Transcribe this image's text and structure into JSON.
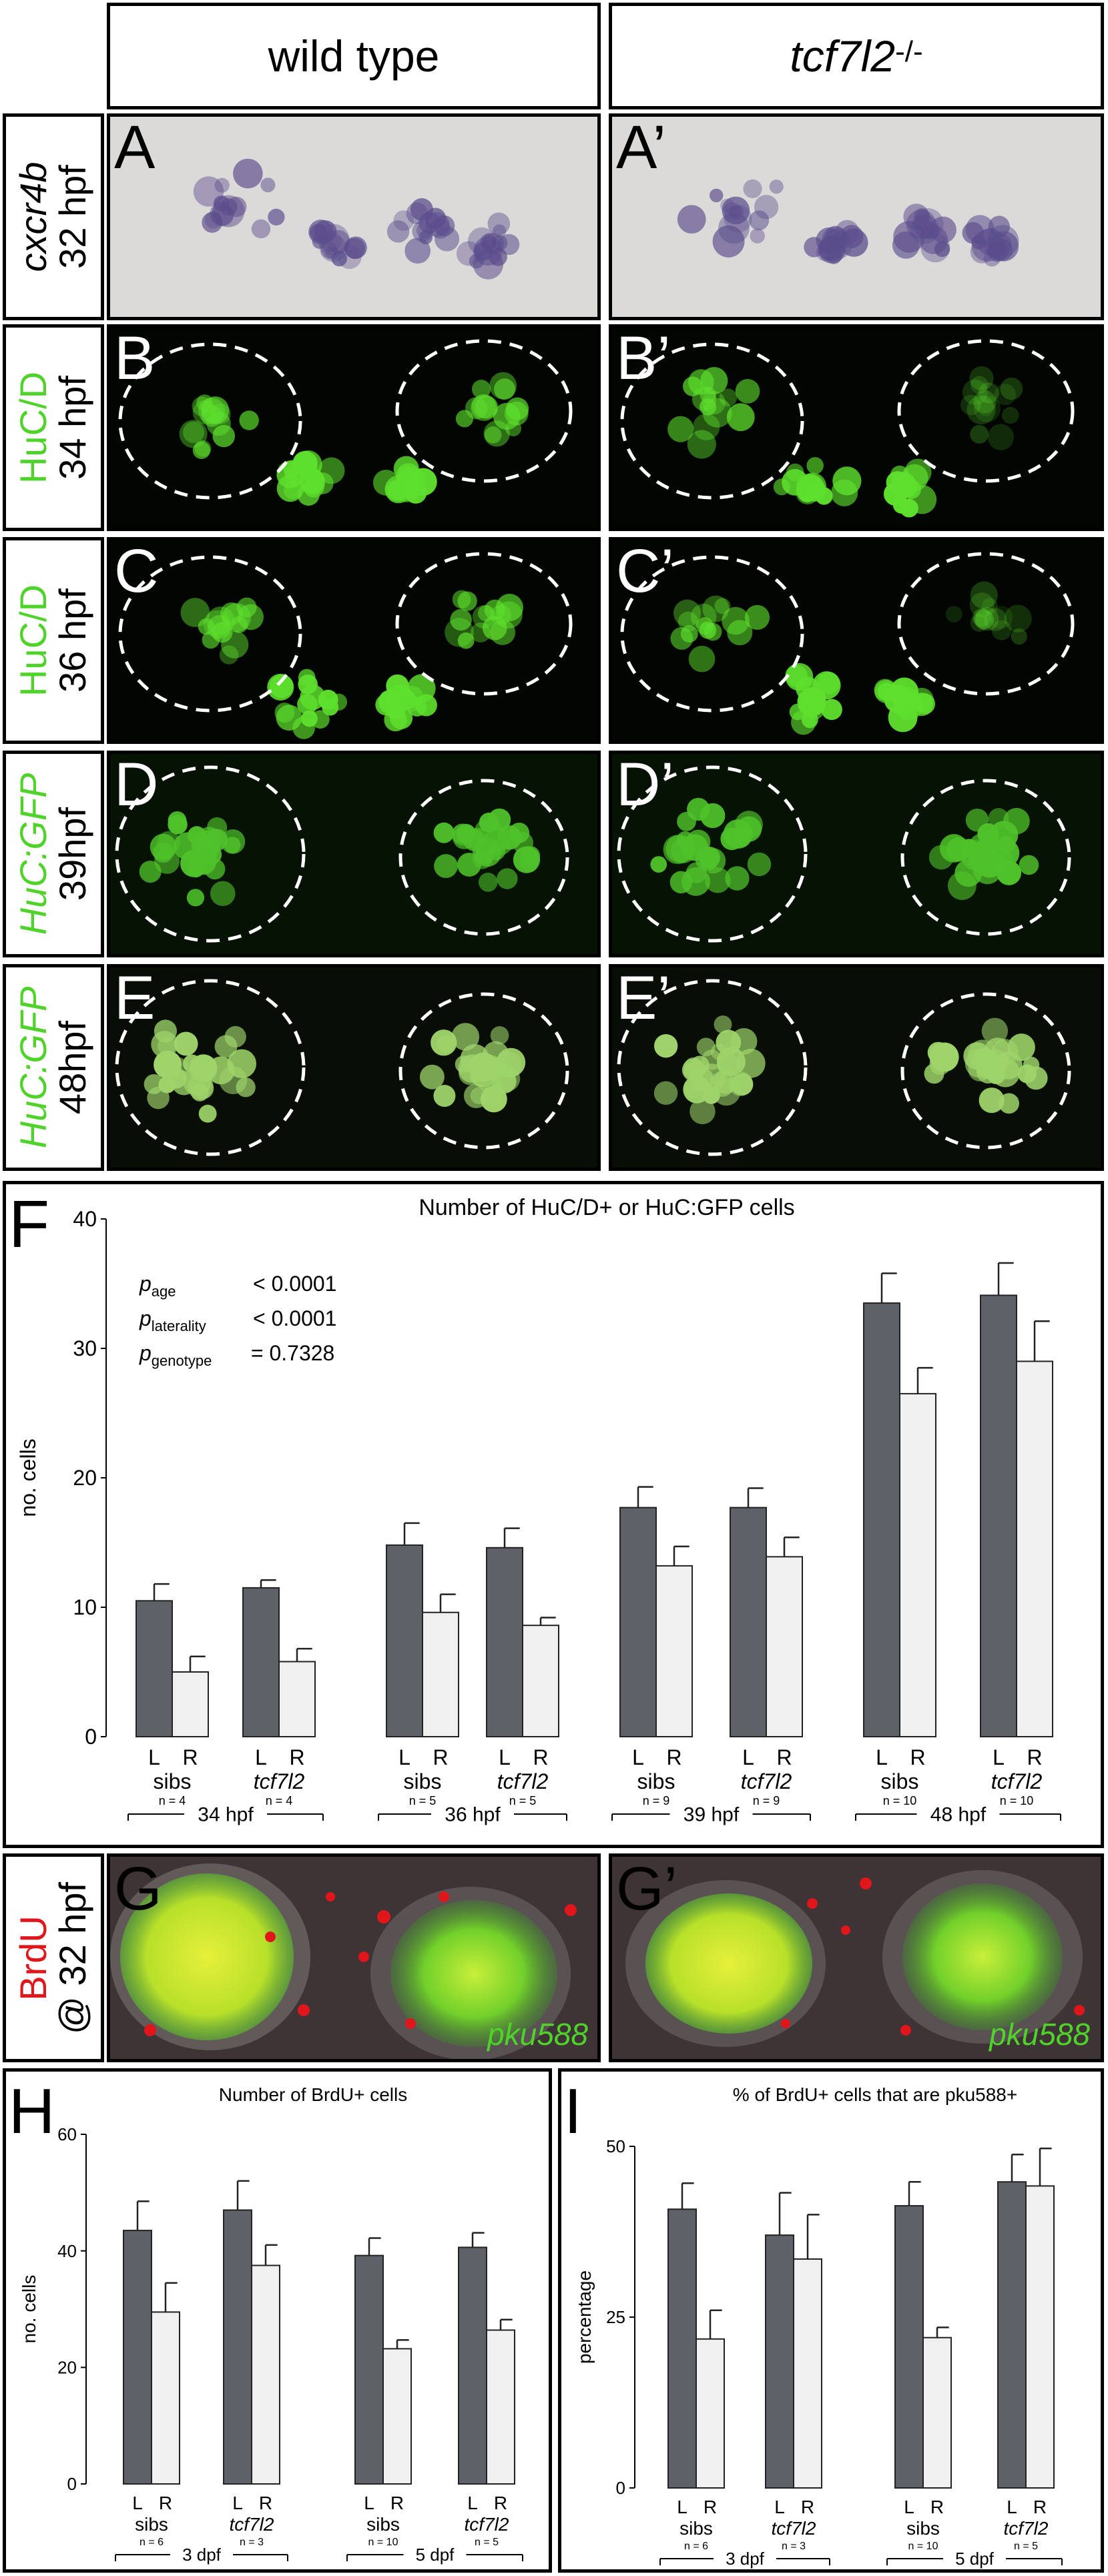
{
  "headers": {
    "wild_type": "wild type",
    "mutant_gene": "tcf7l2",
    "mutant_sup": " -/-"
  },
  "rows": [
    {
      "id": "A",
      "marker": "cxcr4b",
      "stage": "32 hpf",
      "left": "A",
      "right": "A’",
      "color": "#000000"
    },
    {
      "id": "B",
      "marker": "HuC/D",
      "stage": "34 hpf",
      "left": "B",
      "right": "B’",
      "color": "#4fd32a"
    },
    {
      "id": "C",
      "marker": "HuC/D",
      "stage": "36 hpf",
      "left": "C",
      "right": "C’",
      "color": "#4fd32a"
    },
    {
      "id": "D",
      "marker": "HuC:GFP",
      "stage": "39hpf",
      "left": "D",
      "right": "D’",
      "color": "#4fd32a"
    },
    {
      "id": "E",
      "marker": "HuC:GFP",
      "stage": "48hpf",
      "left": "E",
      "right": "E’",
      "color": "#4fd32a"
    }
  ],
  "panel_g": {
    "label_brdu": "BrdU",
    "label_stage": "@ 32 hpf",
    "left": "G",
    "right": "G’",
    "pku": "pku588"
  },
  "chart_f": {
    "letter": "F",
    "stats": {
      "age_sym": "p",
      "age_sub": "age",
      "age_val": "< 0.0001",
      "lat_sym": "p",
      "lat_sub": "laterality",
      "lat_val": "< 0.0001",
      "gen_sym": "p",
      "gen_sub": "genotype",
      "gen_val": "= 0.7328"
    }
  },
  "chart_h": {
    "letter": "H"
  },
  "chart_i": {
    "letter": "I"
  },
  "colors": {
    "dark_bar": "#5f6168",
    "light_bar": "#f0f0f0",
    "green": "#4fd32a",
    "red": "#e0161b"
  },
  "chart_data": [
    {
      "type": "bar",
      "title": "Number of HuC/D+ or HuC:GFP cells",
      "ylabel": "no. cells",
      "ylim": [
        0,
        40
      ],
      "yticks": [
        0,
        10,
        20,
        30,
        40
      ],
      "series_names": [
        "L",
        "R"
      ],
      "groups": [
        {
          "label": "sibs",
          "n": "n = 4",
          "stage": "34 hpf",
          "L": 10.5,
          "L_err": 1.3,
          "R": 5.0,
          "R_err": 1.2
        },
        {
          "label": "tcf7l2",
          "n": "n = 4",
          "stage": "34 hpf",
          "L": 11.5,
          "L_err": 0.6,
          "R": 5.8,
          "R_err": 1.0
        },
        {
          "label": "sibs",
          "n": "n = 5",
          "stage": "36 hpf",
          "L": 14.8,
          "L_err": 1.7,
          "R": 9.6,
          "R_err": 1.4
        },
        {
          "label": "tcf7l2",
          "n": "n = 5",
          "stage": "36 hpf",
          "L": 14.6,
          "L_err": 1.5,
          "R": 8.6,
          "R_err": 0.6
        },
        {
          "label": "sibs",
          "n": "n = 9",
          "stage": "39 hpf",
          "L": 17.7,
          "L_err": 1.6,
          "R": 13.2,
          "R_err": 1.5
        },
        {
          "label": "tcf7l2",
          "n": "n = 9",
          "stage": "39 hpf",
          "L": 17.7,
          "L_err": 1.5,
          "R": 13.9,
          "R_err": 1.5
        },
        {
          "label": "sibs",
          "n": "n = 10",
          "stage": "48 hpf",
          "L": 33.5,
          "L_err": 2.3,
          "R": 26.5,
          "R_err": 2.0
        },
        {
          "label": "tcf7l2",
          "n": "n = 10",
          "stage": "48 hpf",
          "L": 34.1,
          "L_err": 2.5,
          "R": 29.0,
          "R_err": 3.1
        }
      ],
      "stages": [
        "34 hpf",
        "36 hpf",
        "39 hpf",
        "48 hpf"
      ]
    },
    {
      "type": "bar",
      "title": "Number of BrdU+ cells",
      "ylabel": "no. cells",
      "ylim": [
        0,
        60
      ],
      "yticks": [
        0,
        20,
        40,
        60
      ],
      "series_names": [
        "L",
        "R"
      ],
      "groups": [
        {
          "label": "sibs",
          "n": "n = 6",
          "stage": "3 dpf",
          "L": 43.5,
          "L_err": 5.0,
          "R": 29.5,
          "R_err": 5.0
        },
        {
          "label": "tcf7l2",
          "n": "n = 3",
          "stage": "3 dpf",
          "L": 47.0,
          "L_err": 5.0,
          "R": 37.5,
          "R_err": 3.5
        },
        {
          "label": "sibs",
          "n": "n = 10",
          "stage": "5 dpf",
          "L": 39.2,
          "L_err": 3.0,
          "R": 23.2,
          "R_err": 1.5
        },
        {
          "label": "tcf7l2",
          "n": "n = 5",
          "stage": "5 dpf",
          "L": 40.6,
          "L_err": 2.5,
          "R": 26.4,
          "R_err": 1.8
        }
      ],
      "stages": [
        "3 dpf",
        "5 dpf"
      ]
    },
    {
      "type": "bar",
      "title": "% of BrdU+ cells that are pku588+",
      "ylabel": "percentage",
      "ylim": [
        0,
        50
      ],
      "yticks": [
        0,
        25,
        50
      ],
      "series_names": [
        "L",
        "R"
      ],
      "groups": [
        {
          "label": "sibs",
          "n": "n = 6",
          "stage": "3 dpf",
          "L": 40.8,
          "L_err": 3.8,
          "R": 21.8,
          "R_err": 4.2
        },
        {
          "label": "tcf7l2",
          "n": "n = 3",
          "stage": "3 dpf",
          "L": 37.0,
          "L_err": 6.2,
          "R": 33.5,
          "R_err": 6.5
        },
        {
          "label": "sibs",
          "n": "n = 10",
          "stage": "5 dpf",
          "L": 41.3,
          "L_err": 3.5,
          "R": 22.0,
          "R_err": 1.5
        },
        {
          "label": "tcf7l2",
          "n": "n = 5",
          "stage": "5 dpf",
          "L": 44.8,
          "L_err": 4.0,
          "R": 44.2,
          "R_err": 5.5
        }
      ],
      "stages": [
        "3 dpf",
        "5 dpf"
      ]
    }
  ]
}
